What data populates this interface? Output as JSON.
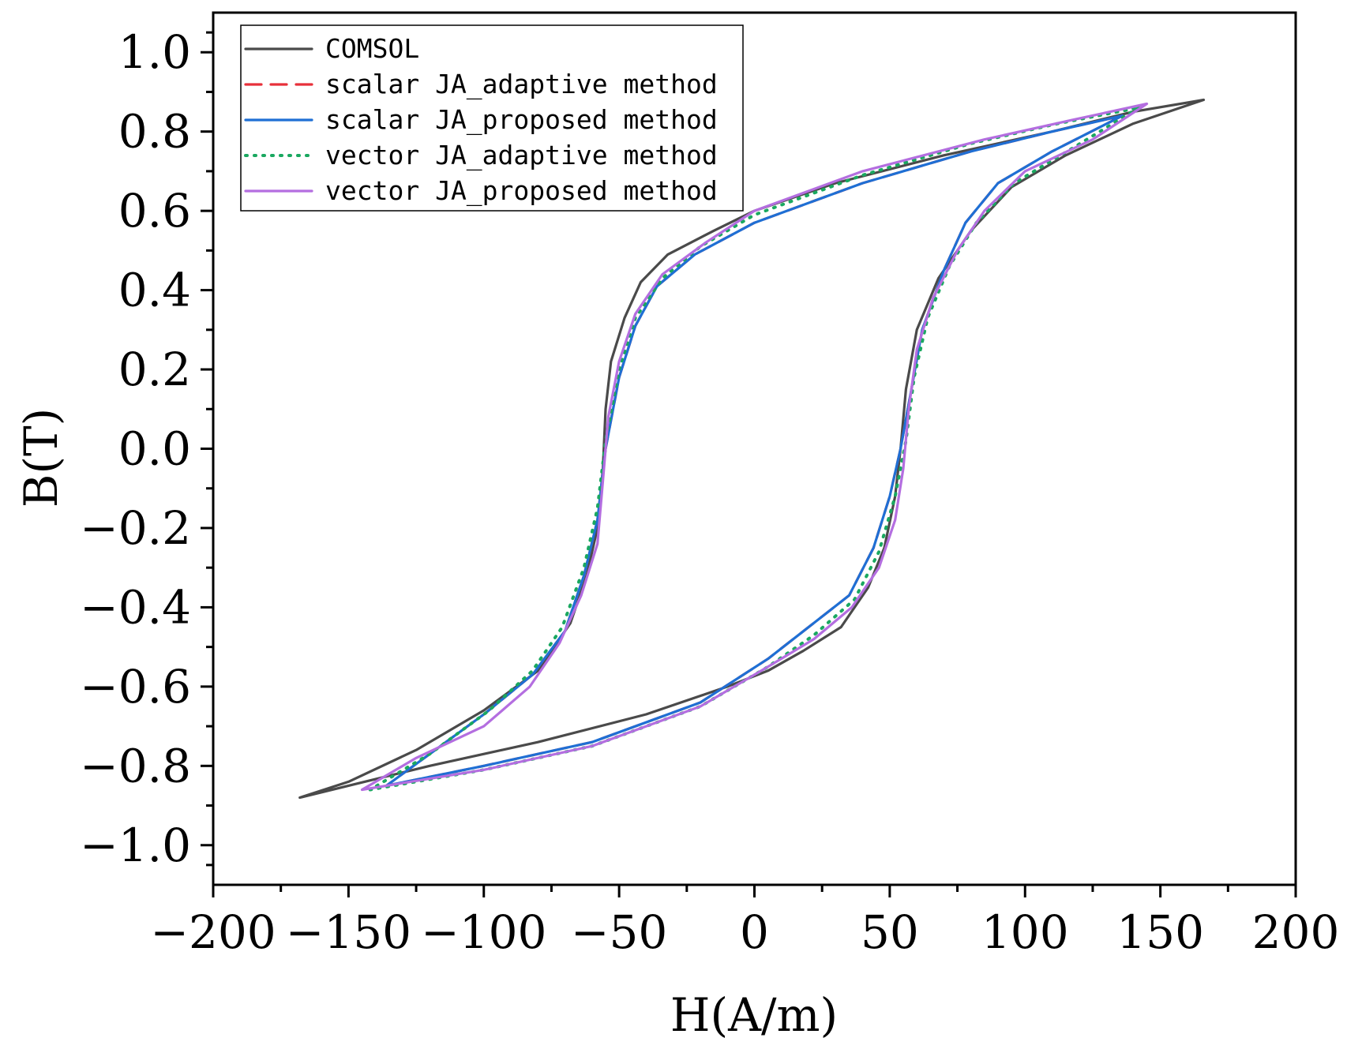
{
  "chart_data": {
    "type": "line",
    "title": "",
    "xlabel": "H(A/m)",
    "ylabel": "B(T)",
    "xlim": [
      -200,
      200
    ],
    "ylim": [
      -1.1,
      1.1
    ],
    "xticks": [
      -200,
      -150,
      -100,
      -50,
      0,
      50,
      100,
      150,
      200
    ],
    "xtick_labels": [
      "−200",
      "−150",
      "−100",
      "−50",
      "0",
      "50",
      "100",
      "150",
      "200"
    ],
    "yticks": [
      -1.0,
      -0.8,
      -0.6,
      -0.4,
      -0.2,
      0.0,
      0.2,
      0.4,
      0.6,
      0.8,
      1.0
    ],
    "ytick_labels": [
      "−1.0",
      "−0.8",
      "−0.6",
      "−0.4",
      "−0.2",
      "0.0",
      "0.2",
      "0.4",
      "0.6",
      "0.8",
      "1.0"
    ],
    "grid": false,
    "legend_position": "top-left",
    "series": [
      {
        "name": "COMSOL",
        "color": "#4a4a4a",
        "style": "solid",
        "points": [
          [
            18,
            -0.51
          ],
          [
            5,
            -0.56
          ],
          [
            -10,
            -0.6
          ],
          [
            -40,
            -0.67
          ],
          [
            -80,
            -0.74
          ],
          [
            -120,
            -0.8
          ],
          [
            -150,
            -0.85
          ],
          [
            -168,
            -0.88
          ],
          [
            -150,
            -0.84
          ],
          [
            -125,
            -0.76
          ],
          [
            -100,
            -0.66
          ],
          [
            -80,
            -0.56
          ],
          [
            -68,
            -0.44
          ],
          [
            -62,
            -0.32
          ],
          [
            -58,
            -0.2
          ],
          [
            -56,
            -0.05
          ],
          [
            -55,
            0.1
          ],
          [
            -53,
            0.22
          ],
          [
            -48,
            0.33
          ],
          [
            -42,
            0.42
          ],
          [
            -32,
            0.49
          ],
          [
            -15,
            0.55
          ],
          [
            0,
            0.6
          ],
          [
            30,
            0.67
          ],
          [
            70,
            0.74
          ],
          [
            110,
            0.8
          ],
          [
            140,
            0.85
          ],
          [
            166,
            0.88
          ],
          [
            140,
            0.82
          ],
          [
            115,
            0.74
          ],
          [
            95,
            0.66
          ],
          [
            80,
            0.55
          ],
          [
            68,
            0.43
          ],
          [
            60,
            0.3
          ],
          [
            56,
            0.15
          ],
          [
            54,
            0.0
          ],
          [
            52,
            -0.12
          ],
          [
            48,
            -0.25
          ],
          [
            42,
            -0.35
          ],
          [
            32,
            -0.45
          ],
          [
            18,
            -0.51
          ]
        ]
      },
      {
        "name": "scalar JA_adaptive method",
        "color": "#e8303a",
        "style": "dashed",
        "points": [
          [
            136,
            0.84
          ],
          [
            110,
            0.75
          ],
          [
            90,
            0.67
          ],
          [
            78,
            0.57
          ],
          [
            70,
            0.45
          ],
          [
            62,
            0.3
          ],
          [
            58,
            0.15
          ],
          [
            54,
            0.0
          ],
          [
            50,
            -0.12
          ],
          [
            44,
            -0.25
          ],
          [
            35,
            -0.37
          ],
          [
            20,
            -0.45
          ],
          [
            5,
            -0.53
          ],
          [
            -20,
            -0.64
          ],
          [
            -60,
            -0.74
          ],
          [
            -100,
            -0.8
          ],
          [
            -136,
            -0.85
          ],
          [
            -120,
            -0.77
          ],
          [
            -100,
            -0.67
          ],
          [
            -82,
            -0.57
          ],
          [
            -70,
            -0.46
          ],
          [
            -63,
            -0.32
          ],
          [
            -58,
            -0.18
          ],
          [
            -55,
            0.0
          ],
          [
            -50,
            0.18
          ],
          [
            -44,
            0.31
          ],
          [
            -36,
            0.41
          ],
          [
            -22,
            0.49
          ],
          [
            0,
            0.57
          ],
          [
            40,
            0.67
          ],
          [
            80,
            0.75
          ],
          [
            110,
            0.8
          ],
          [
            136,
            0.84
          ]
        ]
      },
      {
        "name": "scalar JA_proposed method",
        "color": "#1f6fd4",
        "style": "solid",
        "points": [
          [
            136,
            0.84
          ],
          [
            110,
            0.75
          ],
          [
            90,
            0.67
          ],
          [
            78,
            0.57
          ],
          [
            70,
            0.45
          ],
          [
            62,
            0.3
          ],
          [
            58,
            0.15
          ],
          [
            54,
            0.0
          ],
          [
            50,
            -0.12
          ],
          [
            44,
            -0.25
          ],
          [
            35,
            -0.37
          ],
          [
            20,
            -0.45
          ],
          [
            5,
            -0.53
          ],
          [
            -20,
            -0.64
          ],
          [
            -60,
            -0.74
          ],
          [
            -100,
            -0.8
          ],
          [
            -136,
            -0.85
          ],
          [
            -120,
            -0.77
          ],
          [
            -100,
            -0.67
          ],
          [
            -82,
            -0.57
          ],
          [
            -70,
            -0.46
          ],
          [
            -63,
            -0.32
          ],
          [
            -58,
            -0.18
          ],
          [
            -55,
            0.0
          ],
          [
            -50,
            0.18
          ],
          [
            -44,
            0.31
          ],
          [
            -36,
            0.41
          ],
          [
            -22,
            0.49
          ],
          [
            0,
            0.57
          ],
          [
            40,
            0.67
          ],
          [
            80,
            0.75
          ],
          [
            110,
            0.8
          ],
          [
            136,
            0.84
          ]
        ]
      },
      {
        "name": "vector JA_adaptive method",
        "color": "#1aa860",
        "style": "dotted",
        "points": [
          [
            142,
            0.86
          ],
          [
            118,
            0.76
          ],
          [
            96,
            0.67
          ],
          [
            82,
            0.57
          ],
          [
            72,
            0.46
          ],
          [
            64,
            0.33
          ],
          [
            59,
            0.18
          ],
          [
            56,
            0.02
          ],
          [
            52,
            -0.12
          ],
          [
            46,
            -0.26
          ],
          [
            37,
            -0.38
          ],
          [
            22,
            -0.47
          ],
          [
            5,
            -0.55
          ],
          [
            -20,
            -0.65
          ],
          [
            -60,
            -0.75
          ],
          [
            -100,
            -0.81
          ],
          [
            -142,
            -0.86
          ],
          [
            -120,
            -0.77
          ],
          [
            -98,
            -0.66
          ],
          [
            -82,
            -0.56
          ],
          [
            -71,
            -0.45
          ],
          [
            -63,
            -0.3
          ],
          [
            -58,
            -0.15
          ],
          [
            -55,
            0.02
          ],
          [
            -50,
            0.2
          ],
          [
            -44,
            0.33
          ],
          [
            -34,
            0.43
          ],
          [
            -20,
            0.51
          ],
          [
            0,
            0.59
          ],
          [
            40,
            0.69
          ],
          [
            80,
            0.77
          ],
          [
            112,
            0.82
          ],
          [
            142,
            0.86
          ]
        ]
      },
      {
        "name": "vector JA_proposed method",
        "color": "#b46ee0",
        "style": "solid",
        "points": [
          [
            145,
            0.87
          ],
          [
            125,
            0.78
          ],
          [
            100,
            0.7
          ],
          [
            85,
            0.6
          ],
          [
            75,
            0.5
          ],
          [
            66,
            0.38
          ],
          [
            60,
            0.25
          ],
          [
            57,
            0.1
          ],
          [
            55,
            -0.05
          ],
          [
            52,
            -0.18
          ],
          [
            46,
            -0.3
          ],
          [
            36,
            -0.4
          ],
          [
            22,
            -0.48
          ],
          [
            5,
            -0.55
          ],
          [
            -20,
            -0.65
          ],
          [
            -60,
            -0.75
          ],
          [
            -100,
            -0.81
          ],
          [
            -145,
            -0.86
          ],
          [
            -125,
            -0.78
          ],
          [
            -100,
            -0.7
          ],
          [
            -83,
            -0.6
          ],
          [
            -72,
            -0.49
          ],
          [
            -64,
            -0.37
          ],
          [
            -58,
            -0.24
          ],
          [
            -56,
            -0.08
          ],
          [
            -54,
            0.08
          ],
          [
            -50,
            0.22
          ],
          [
            -44,
            0.34
          ],
          [
            -34,
            0.44
          ],
          [
            -18,
            0.52
          ],
          [
            0,
            0.6
          ],
          [
            40,
            0.7
          ],
          [
            85,
            0.78
          ],
          [
            118,
            0.83
          ],
          [
            145,
            0.87
          ]
        ]
      }
    ]
  }
}
